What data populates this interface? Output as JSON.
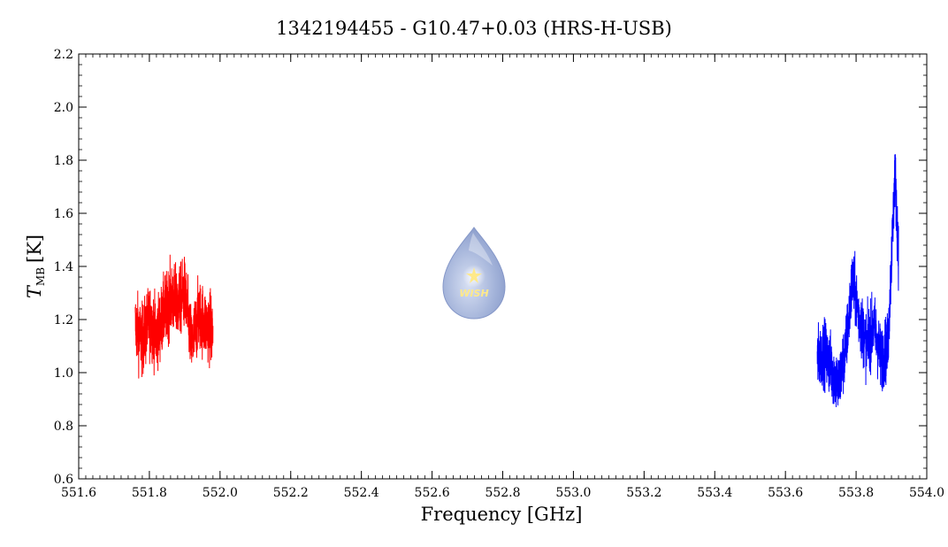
{
  "chart_data": {
    "type": "line",
    "title": "1342194455 - G10.47+0.03 (HRS-H-USB)",
    "xlabel": "Frequency [GHz]",
    "ylabel_main": "T",
    "ylabel_sub": "MB",
    "ylabel_unit": "[K]",
    "xlim": [
      551.6,
      554.0
    ],
    "ylim": [
      0.6,
      2.2
    ],
    "xticks": [
      551.6,
      551.8,
      552.0,
      552.2,
      552.4,
      552.6,
      552.8,
      553.0,
      553.2,
      553.4,
      553.6,
      553.8,
      554.0
    ],
    "xtick_labels": [
      "551.6",
      "551.8",
      "552.0",
      "552.2",
      "552.4",
      "552.6",
      "552.8",
      "553.0",
      "553.2",
      "553.4",
      "553.6",
      "553.8",
      "554.0"
    ],
    "yticks": [
      0.6,
      0.8,
      1.0,
      1.2,
      1.4,
      1.6,
      1.8,
      2.0,
      2.2
    ],
    "ytick_labels": [
      "0.6",
      "0.8",
      "1.0",
      "1.2",
      "1.4",
      "1.6",
      "1.8",
      "2.0",
      "2.2"
    ],
    "grid": false,
    "series": [
      {
        "color": "#ff0000",
        "x": [
          551.76,
          551.78,
          551.8,
          551.82,
          551.84,
          551.86,
          551.88,
          551.9,
          551.92,
          551.94,
          551.96,
          551.98
        ],
        "y": [
          1.18,
          1.12,
          1.2,
          1.14,
          1.22,
          1.28,
          1.26,
          1.3,
          1.1,
          1.22,
          1.18,
          1.16
        ],
        "noise": 0.13
      },
      {
        "color": "#0000ff",
        "x": [
          553.69,
          553.71,
          553.73,
          553.75,
          553.77,
          553.79,
          553.81,
          553.83,
          553.85,
          553.87,
          553.89,
          553.91,
          553.92
        ],
        "y": [
          1.05,
          1.08,
          1.02,
          0.95,
          1.08,
          1.35,
          1.2,
          1.1,
          1.18,
          1.05,
          1.1,
          1.75,
          1.45
        ],
        "noise": 0.12
      }
    ]
  },
  "logo": {
    "text": "WISH",
    "fill_color": "#9fb0d8",
    "star_color": "#ffe98a"
  }
}
